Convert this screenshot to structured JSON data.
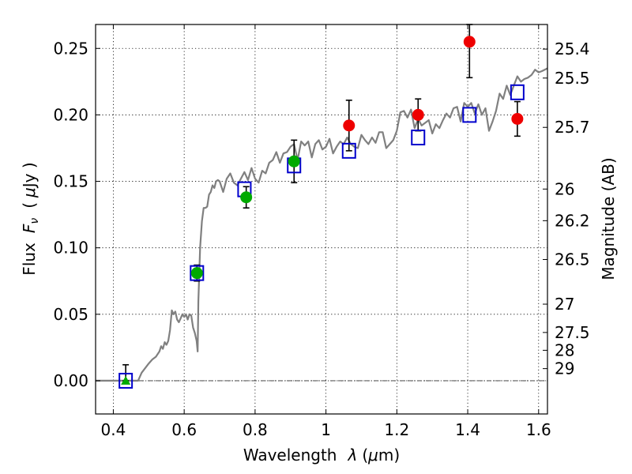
{
  "chart_data": {
    "type": "scatter",
    "xlabel_prefix": "Wavelength",
    "xlabel_symbol": "λ",
    "xlabel_unit_open": "(",
    "xlabel_unit_mu": "μ",
    "xlabel_unit_rest": "m)",
    "ylabel_prefix": "Flux",
    "ylabel_symbol": "F",
    "ylabel_sub": "ν",
    "ylabel_unit_open": "(",
    "ylabel_unit_mu": "μ",
    "ylabel_unit_rest": "Jy )",
    "y2label": "Magnitude (AB)",
    "xlim": [
      0.35,
      1.625
    ],
    "ylim": [
      -0.025,
      0.268
    ],
    "x_ticks": [
      0.4,
      0.6,
      0.8,
      1.0,
      1.2,
      1.4,
      1.6
    ],
    "x_tick_labels": [
      "0.4",
      "0.6",
      "0.8",
      "1",
      "1.2",
      "1.4",
      "1.6"
    ],
    "y_ticks": [
      0.0,
      0.05,
      0.1,
      0.15,
      0.2,
      0.25
    ],
    "y_tick_labels": [
      "0.00",
      "0.05",
      "0.10",
      "0.15",
      "0.20",
      "0.25"
    ],
    "mag_ticks": [
      {
        "flux": 0.2495,
        "label": "25.4"
      },
      {
        "flux": 0.2277,
        "label": "25.5"
      },
      {
        "flux": 0.1906,
        "label": "25.7"
      },
      {
        "flux": 0.1442,
        "label": "26"
      },
      {
        "flux": 0.1204,
        "label": "26.2"
      },
      {
        "flux": 0.0912,
        "label": "26.5"
      },
      {
        "flux": 0.0576,
        "label": "27"
      },
      {
        "flux": 0.0363,
        "label": "27.5"
      },
      {
        "flux": 0.0229,
        "label": "28"
      },
      {
        "flux": 0.0091,
        "label": "29"
      }
    ],
    "grid": true,
    "zero_line": true,
    "colors": {
      "model": "#808080",
      "model_phot": "#0000cc",
      "optical": "#00aa00",
      "nir": "#ee0000",
      "errorbar": "#000000"
    },
    "series": [
      {
        "type": "line",
        "x": [
          0.35,
          0.47,
          0.48,
          0.5,
          0.51,
          0.52,
          0.53,
          0.535,
          0.54,
          0.545,
          0.55,
          0.555,
          0.56,
          0.565,
          0.57,
          0.575,
          0.58,
          0.585,
          0.59,
          0.595,
          0.6,
          0.605,
          0.61,
          0.615,
          0.62,
          0.625,
          0.63,
          0.635,
          0.638,
          0.64,
          0.645,
          0.65,
          0.655,
          0.66,
          0.665,
          0.67,
          0.675,
          0.68,
          0.685,
          0.69,
          0.695,
          0.7,
          0.71,
          0.72,
          0.73,
          0.74,
          0.75,
          0.76,
          0.77,
          0.78,
          0.79,
          0.8,
          0.81,
          0.82,
          0.83,
          0.84,
          0.85,
          0.86,
          0.87,
          0.88,
          0.89,
          0.9,
          0.91,
          0.92,
          0.93,
          0.94,
          0.95,
          0.96,
          0.97,
          0.98,
          0.99,
          1.0,
          1.01,
          1.02,
          1.03,
          1.04,
          1.05,
          1.06,
          1.07,
          1.08,
          1.09,
          1.1,
          1.11,
          1.12,
          1.13,
          1.14,
          1.15,
          1.16,
          1.17,
          1.18,
          1.19,
          1.2,
          1.21,
          1.22,
          1.23,
          1.24,
          1.25,
          1.26,
          1.27,
          1.28,
          1.29,
          1.3,
          1.31,
          1.32,
          1.33,
          1.34,
          1.35,
          1.36,
          1.37,
          1.38,
          1.39,
          1.4,
          1.41,
          1.42,
          1.43,
          1.44,
          1.45,
          1.46,
          1.47,
          1.48,
          1.49,
          1.5,
          1.51,
          1.52,
          1.53,
          1.54,
          1.55,
          1.56,
          1.57,
          1.58,
          1.59,
          1.6,
          1.61,
          1.625
        ],
        "y": [
          0.0,
          0.0,
          0.006,
          0.013,
          0.016,
          0.018,
          0.022,
          0.026,
          0.024,
          0.029,
          0.027,
          0.03,
          0.038,
          0.053,
          0.05,
          0.052,
          0.046,
          0.044,
          0.047,
          0.05,
          0.048,
          0.05,
          0.046,
          0.05,
          0.049,
          0.04,
          0.036,
          0.03,
          0.022,
          0.06,
          0.1,
          0.12,
          0.13,
          0.13,
          0.131,
          0.14,
          0.142,
          0.147,
          0.145,
          0.15,
          0.151,
          0.15,
          0.142,
          0.152,
          0.156,
          0.149,
          0.147,
          0.152,
          0.157,
          0.151,
          0.16,
          0.152,
          0.149,
          0.158,
          0.156,
          0.164,
          0.166,
          0.172,
          0.164,
          0.171,
          0.172,
          0.176,
          0.178,
          0.166,
          0.18,
          0.177,
          0.18,
          0.168,
          0.178,
          0.181,
          0.174,
          0.176,
          0.182,
          0.171,
          0.176,
          0.18,
          0.178,
          0.183,
          0.178,
          0.176,
          0.175,
          0.185,
          0.181,
          0.178,
          0.183,
          0.179,
          0.187,
          0.187,
          0.175,
          0.178,
          0.181,
          0.188,
          0.202,
          0.203,
          0.198,
          0.204,
          0.19,
          0.197,
          0.192,
          0.194,
          0.196,
          0.186,
          0.193,
          0.19,
          0.196,
          0.201,
          0.198,
          0.205,
          0.206,
          0.195,
          0.209,
          0.206,
          0.209,
          0.201,
          0.208,
          0.2,
          0.205,
          0.188,
          0.195,
          0.203,
          0.216,
          0.212,
          0.222,
          0.215,
          0.222,
          0.229,
          0.225,
          0.227,
          0.228,
          0.23,
          0.234,
          0.232,
          0.233,
          0.235
        ]
      },
      {
        "type": "squares",
        "x": [
          0.435,
          0.636,
          0.77,
          0.91,
          1.065,
          1.26,
          1.405,
          1.54
        ],
        "y": [
          0.0,
          0.081,
          0.144,
          0.162,
          0.173,
          0.183,
          0.2,
          0.217
        ]
      },
      {
        "type": "points",
        "x": [
          0.636,
          0.775,
          0.91
        ],
        "y": [
          0.081,
          0.138,
          0.165
        ],
        "yerr": [
          0.006,
          0.008,
          0.016
        ]
      },
      {
        "type": "points",
        "x": [
          1.065,
          1.26,
          1.405,
          1.54
        ],
        "y": [
          0.192,
          0.2,
          0.255,
          0.197
        ],
        "yerr": [
          0.019,
          0.012,
          0.027,
          0.013
        ]
      },
      {
        "type": "limit",
        "x": [
          0.435
        ],
        "y": [
          0.0
        ],
        "yerr_up": [
          0.012
        ]
      }
    ]
  }
}
